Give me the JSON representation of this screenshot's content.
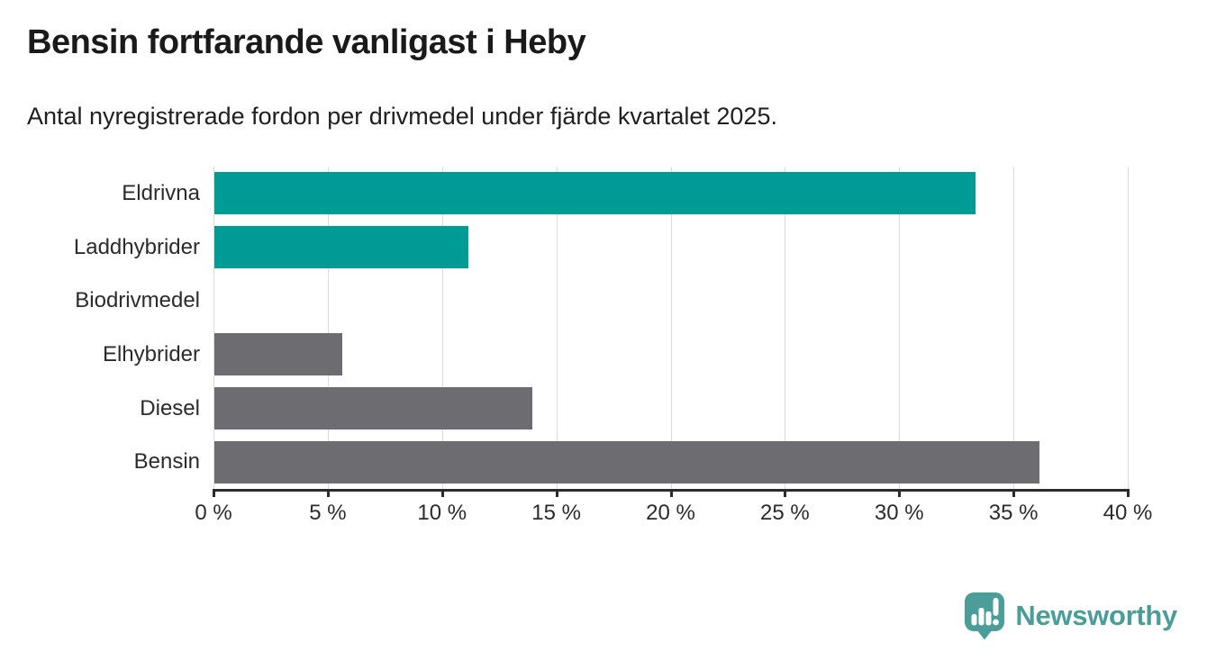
{
  "header": {
    "title": "Bensin fortfarande vanligast i Heby",
    "subtitle": "Antal nyregistrerade fordon per drivmedel under fjärde kvartalet 2025."
  },
  "chart_data": {
    "type": "bar",
    "orientation": "horizontal",
    "title": "Bensin fortfarande vanligast i Heby",
    "subtitle": "Antal nyregistrerade fordon per drivmedel under fjärde kvartalet 2025.",
    "categories": [
      "Eldrivna",
      "Laddhybrider",
      "Biodrivmedel",
      "Elhybrider",
      "Diesel",
      "Bensin"
    ],
    "values": [
      33.3,
      11.1,
      0,
      5.6,
      13.9,
      36.1
    ],
    "unit": "%",
    "bar_colors": [
      "#009b94",
      "#009b94",
      "#6c6c71",
      "#6c6c71",
      "#6c6c71",
      "#6c6c71"
    ],
    "xlabel": "",
    "ylabel": "",
    "xlim": [
      0,
      40
    ],
    "x_tick_values": [
      0,
      5,
      10,
      15,
      20,
      25,
      30,
      35,
      40
    ],
    "x_tick_labels": [
      "0 %",
      "5 %",
      "10 %",
      "15 %",
      "20 %",
      "25 %",
      "30 %",
      "35 %",
      "40 %"
    ],
    "grid": "vertical-on",
    "legend": "none"
  },
  "branding": {
    "logo_text": "Newsworthy",
    "logo_icon": "speech-bubble-bar-chart-icon",
    "logo_color": "#4a9d99"
  },
  "colors": {
    "background": "#ffffff",
    "accent_teal": "#009b94",
    "neutral_gray": "#6c6c71",
    "axis": "#2b2b2b",
    "gridline": "#dcdcdc",
    "title_text": "#1a1a1a"
  }
}
